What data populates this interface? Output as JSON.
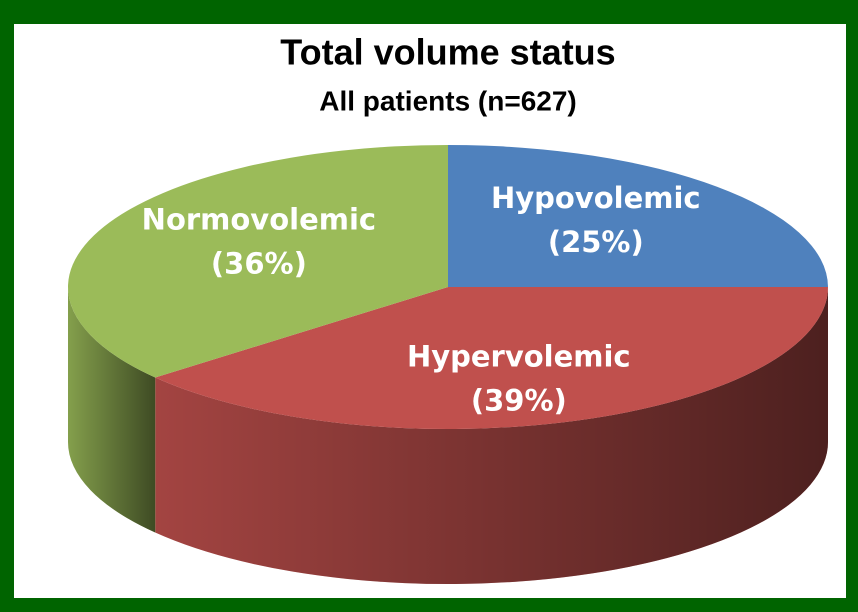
{
  "chart_data": {
    "type": "pie",
    "title": "Total volume status",
    "subtitle": "All patients  (n=627)",
    "categories": [
      "Hypovolemic",
      "Hypervolemic",
      "Normovolemic"
    ],
    "values": [
      25,
      39,
      36
    ],
    "value_labels": [
      "(25%)",
      "(39%)",
      "(36%)"
    ],
    "colors": [
      "#4f81bd",
      "#c0504d",
      "#9bbb59"
    ]
  }
}
